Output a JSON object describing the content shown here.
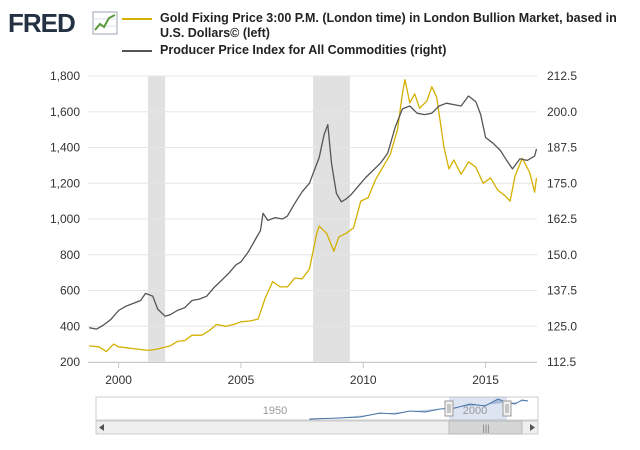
{
  "logo": {
    "text": "FRED",
    "icon": "chart-line-icon"
  },
  "colors": {
    "gold": "#d4b000",
    "ppi": "#555555",
    "recession": "#e1e1e1",
    "grid": "#e6e6e6",
    "navigator": "#4572a7"
  },
  "chart_data": {
    "type": "line",
    "title": "",
    "xlabel": "",
    "x_range": [
      1998.75,
      2017.1
    ],
    "x_ticks": [
      "2000",
      "2005",
      "2010",
      "2015"
    ],
    "x_tick_values": [
      2000,
      2005,
      2010,
      2015
    ],
    "left_axis": {
      "ylim": [
        200,
        1800
      ],
      "ticks": [
        "200",
        "400",
        "600",
        "800",
        "1,000",
        "1,200",
        "1,400",
        "1,600",
        "1,800"
      ],
      "tick_values": [
        200,
        400,
        600,
        800,
        1000,
        1200,
        1400,
        1600,
        1800
      ]
    },
    "right_axis": {
      "ylim": [
        112.5,
        212.5
      ],
      "ticks": [
        "112.5",
        "125.0",
        "137.5",
        "150.0",
        "162.5",
        "175.0",
        "187.5",
        "200.0",
        "212.5"
      ],
      "tick_values": [
        112.5,
        125.0,
        137.5,
        150.0,
        162.5,
        175.0,
        187.5,
        200.0,
        212.5
      ]
    },
    "recessions": [
      [
        2001.2,
        2001.9
      ],
      [
        2007.95,
        2009.45
      ]
    ],
    "series": [
      {
        "name": "Gold Fixing Price 3:00 P.M. (London time) in London Bullion Market, based in U.S. Dollars© (left)",
        "axis": "left",
        "x": [
          1998.8,
          1999.2,
          1999.5,
          1999.8,
          2000.0,
          2000.3,
          2000.6,
          2000.9,
          2001.2,
          2001.5,
          2001.8,
          2002.1,
          2002.4,
          2002.7,
          2003.0,
          2003.4,
          2003.7,
          2004.0,
          2004.4,
          2004.7,
          2005.0,
          2005.4,
          2005.7,
          2006.0,
          2006.3,
          2006.6,
          2006.9,
          2007.2,
          2007.5,
          2007.8,
          2008.1,
          2008.2,
          2008.5,
          2008.8,
          2009.0,
          2009.3,
          2009.6,
          2009.9,
          2010.2,
          2010.5,
          2010.8,
          2011.1,
          2011.4,
          2011.6,
          2011.7,
          2011.9,
          2012.1,
          2012.3,
          2012.6,
          2012.8,
          2013.0,
          2013.3,
          2013.5,
          2013.7,
          2014.0,
          2014.3,
          2014.6,
          2014.9,
          2015.2,
          2015.5,
          2015.8,
          2016.0,
          2016.2,
          2016.5,
          2016.8,
          2017.0,
          2017.08
        ],
        "y": [
          290,
          285,
          258,
          300,
          285,
          280,
          275,
          270,
          265,
          270,
          280,
          290,
          315,
          320,
          350,
          350,
          375,
          410,
          400,
          410,
          425,
          430,
          440,
          560,
          650,
          620,
          620,
          670,
          665,
          720,
          920,
          960,
          920,
          820,
          900,
          920,
          950,
          1100,
          1120,
          1220,
          1290,
          1360,
          1500,
          1700,
          1780,
          1650,
          1700,
          1620,
          1660,
          1740,
          1680,
          1400,
          1280,
          1330,
          1250,
          1320,
          1290,
          1200,
          1230,
          1160,
          1130,
          1100,
          1240,
          1340,
          1260,
          1150,
          1230
        ]
      },
      {
        "name": "Producer Price Index for All Commodities (right)",
        "axis": "right",
        "x": [
          1998.8,
          1999.1,
          1999.4,
          1999.7,
          2000.0,
          2000.3,
          2000.6,
          2000.9,
          2001.1,
          2001.4,
          2001.6,
          2001.9,
          2002.1,
          2002.4,
          2002.7,
          2003.0,
          2003.3,
          2003.6,
          2003.9,
          2004.2,
          2004.5,
          2004.8,
          2005.0,
          2005.3,
          2005.6,
          2005.8,
          2005.9,
          2006.1,
          2006.4,
          2006.7,
          2006.9,
          2007.2,
          2007.5,
          2007.8,
          2008.0,
          2008.2,
          2008.4,
          2008.55,
          2008.7,
          2008.9,
          2009.1,
          2009.3,
          2009.5,
          2009.8,
          2010.1,
          2010.4,
          2010.7,
          2011.0,
          2011.3,
          2011.6,
          2011.9,
          2012.2,
          2012.5,
          2012.8,
          2013.1,
          2013.4,
          2013.7,
          2014.0,
          2014.3,
          2014.6,
          2014.8,
          2015.0,
          2015.3,
          2015.6,
          2015.9,
          2016.1,
          2016.4,
          2016.7,
          2017.0,
          2017.08
        ],
        "y": [
          124.5,
          124.0,
          125.5,
          127.5,
          130.5,
          132.0,
          133.0,
          134.0,
          136.5,
          135.5,
          131.0,
          128.5,
          129.0,
          130.5,
          131.5,
          134.0,
          134.5,
          135.5,
          138.5,
          141.0,
          143.5,
          146.5,
          147.5,
          151.0,
          155.5,
          158.5,
          164.5,
          162.0,
          163.0,
          162.5,
          163.5,
          168.0,
          172.0,
          175.0,
          179.5,
          184.0,
          192.0,
          195.5,
          182.0,
          171.5,
          168.5,
          169.5,
          171.0,
          174.0,
          177.0,
          179.5,
          182.0,
          185.5,
          194.5,
          201.0,
          202.0,
          199.5,
          199.0,
          199.5,
          202.0,
          203.0,
          202.5,
          202.0,
          205.5,
          203.5,
          199.0,
          191.0,
          189.0,
          186.5,
          182.5,
          180.0,
          183.5,
          183.0,
          184.5,
          187.0
        ]
      }
    ]
  },
  "navigator": {
    "labels": [
      "1950",
      "2000"
    ],
    "scroll_grip": "|||"
  }
}
